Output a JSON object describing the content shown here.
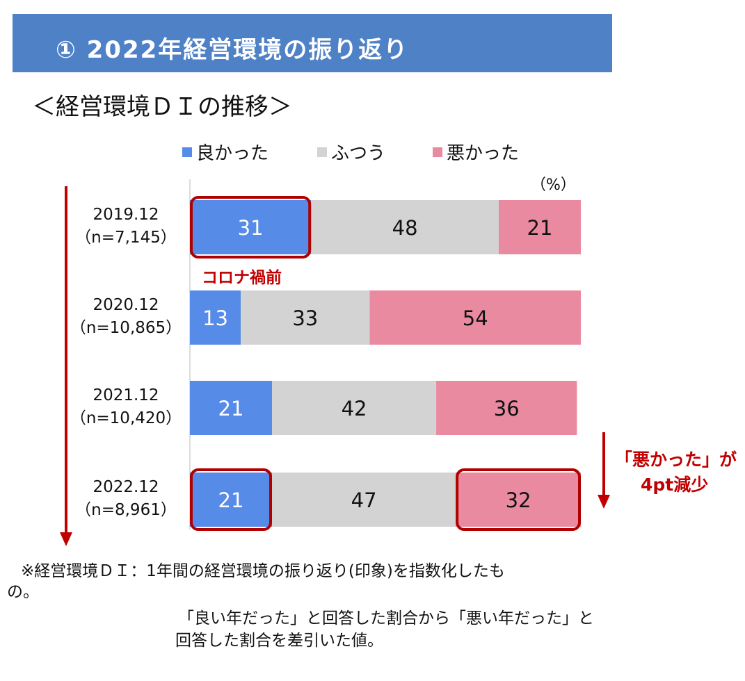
{
  "header": {
    "title": "① 2022年経営環境の振り返り"
  },
  "section_title": "＜経営環境ＤＩの推移＞",
  "unit": "（%）",
  "chart_data": {
    "type": "bar",
    "orientation": "horizontal",
    "stacked": true,
    "categories": [
      {
        "period": "2019.12",
        "sample": "（n=7,145）"
      },
      {
        "period": "2020.12",
        "sample": "（n=10,865）"
      },
      {
        "period": "2021.12",
        "sample": "（n=10,420）"
      },
      {
        "period": "2022.12",
        "sample": "（n=8,961）"
      }
    ],
    "series": [
      {
        "name": "良かった",
        "color": "#568be8",
        "values": [
          31,
          13,
          21,
          21
        ]
      },
      {
        "name": "ふつう",
        "color": "#d3d3d3",
        "values": [
          48,
          33,
          42,
          47
        ]
      },
      {
        "name": "悪かった",
        "color": "#ea8aa0",
        "values": [
          21,
          54,
          36,
          32
        ]
      }
    ],
    "xlim": [
      0,
      100
    ],
    "legend": "top",
    "grid": false
  },
  "annotations": {
    "pre_covid": "コロナ禍前",
    "decrease_line1": "「悪かった」が",
    "decrease_line2": "4pt減少"
  },
  "colors": {
    "accent_red": "#c00000",
    "header_blue": "#4f81c7"
  },
  "footnote": {
    "line1": "※経営環境ＤＩ：1年間の経営環境の振り返り(印象)を指数化したも",
    "line2": "の。",
    "line3": "「良い年だった」と回答した割合から「悪い年だった」と",
    "line4": "回答した割合を差引いた値。"
  }
}
